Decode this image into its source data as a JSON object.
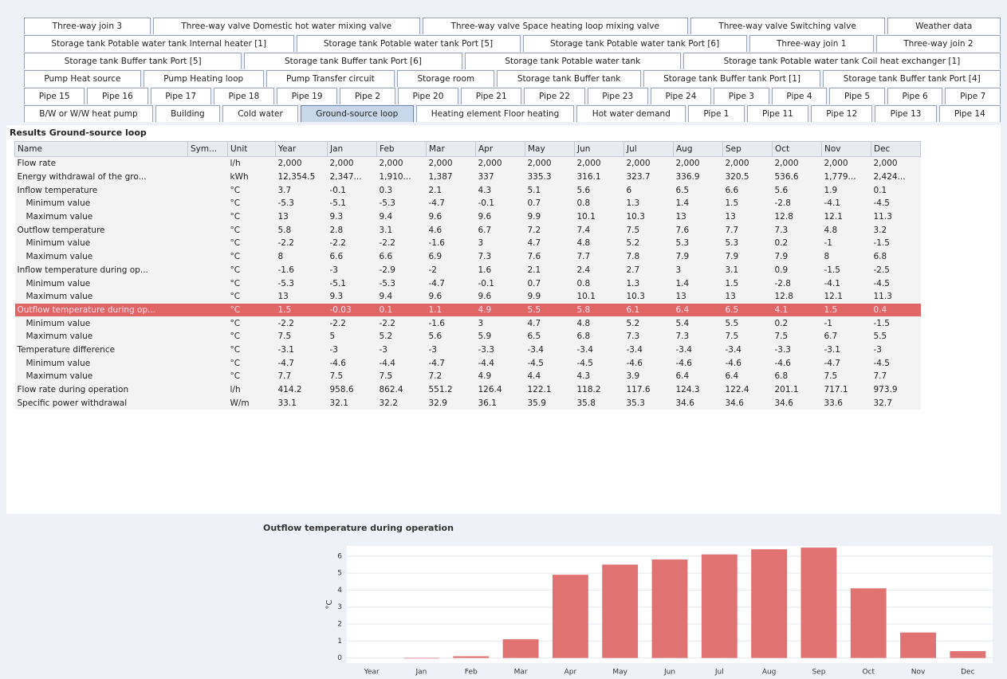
{
  "tabs": [
    [
      "Three-way join 3",
      "Three-way valve Domestic hot water mixing valve",
      "Three-way valve Space heating loop mixing valve",
      "Three-way valve Switching valve",
      "Weather data"
    ],
    [
      "Storage tank Potable water tank Internal heater [1]",
      "Storage tank Potable water tank Port [5]",
      "Storage tank Potable water tank Port [6]",
      "Three-way join 1",
      "Three-way join 2"
    ],
    [
      "Storage tank Buffer tank Port [5]",
      "Storage tank Buffer tank Port [6]",
      "Storage tank Potable water tank",
      "Storage tank Potable water tank Coil heat exchanger [1]"
    ],
    [
      "Pump Heat source",
      "Pump Heating loop",
      "Pump Transfer circuit",
      "Storage room",
      "Storage tank Buffer tank",
      "Storage tank Buffer tank Port [1]",
      "Storage tank Buffer tank Port [4]"
    ],
    [
      "Pipe 15",
      "Pipe 16",
      "Pipe 17",
      "Pipe 18",
      "Pipe 19",
      "Pipe 2",
      "Pipe 20",
      "Pipe 21",
      "Pipe 22",
      "Pipe 23",
      "Pipe 24",
      "Pipe 3",
      "Pipe 4",
      "Pipe 5",
      "Pipe 6",
      "Pipe 7"
    ],
    [
      "B/W or W/W heat pump",
      "Building",
      "Cold water",
      "Ground-source loop",
      "Heating element Floor heating",
      "Hot water demand",
      "Pipe 1",
      "Pipe 11",
      "Pipe 12",
      "Pipe 13",
      "Pipe 14"
    ]
  ],
  "active_tab": {
    "row": 5,
    "index": 3
  },
  "table": {
    "title": "Results Ground-source loop",
    "columns": [
      "Name",
      "Sym...",
      "Unit",
      "Year",
      "Jan",
      "Feb",
      "Mar",
      "Apr",
      "May",
      "Jun",
      "Jul",
      "Aug",
      "Sep",
      "Oct",
      "Nov",
      "Dec"
    ],
    "selected_row": 11,
    "rows": [
      {
        "name": "Flow rate",
        "unit": "l/h",
        "cells": [
          "2,000",
          "2,000",
          "2,000",
          "2,000",
          "2,000",
          "2,000",
          "2,000",
          "2,000",
          "2,000",
          "2,000",
          "2,000",
          "2,000",
          "2,000"
        ]
      },
      {
        "name": "Energy withdrawal of the gro...",
        "unit": "kWh",
        "cells": [
          "12,354.5",
          "2,347...",
          "1,910...",
          "1,387",
          "337",
          "335.3",
          "316.1",
          "323.7",
          "336.9",
          "320.5",
          "536.6",
          "1,779...",
          "2,424..."
        ]
      },
      {
        "name": "Inflow temperature",
        "unit": "°C",
        "cells": [
          "3.7",
          "-0.1",
          "0.3",
          "2.1",
          "4.3",
          "5.1",
          "5.6",
          "6",
          "6.5",
          "6.6",
          "5.6",
          "1.9",
          "0.1"
        ]
      },
      {
        "name": "Minimum value",
        "indent": true,
        "unit": "°C",
        "cells": [
          "-5.3",
          "-5.1",
          "-5.3",
          "-4.7",
          "-0.1",
          "0.7",
          "0.8",
          "1.3",
          "1.4",
          "1.5",
          "-2.8",
          "-4.1",
          "-4.5"
        ]
      },
      {
        "name": "Maximum value",
        "indent": true,
        "unit": "°C",
        "cells": [
          "13",
          "9.3",
          "9.4",
          "9.6",
          "9.6",
          "9.9",
          "10.1",
          "10.3",
          "13",
          "13",
          "12.8",
          "12.1",
          "11.3"
        ]
      },
      {
        "name": "Outflow temperature",
        "unit": "°C",
        "cells": [
          "5.8",
          "2.8",
          "3.1",
          "4.6",
          "6.7",
          "7.2",
          "7.4",
          "7.5",
          "7.6",
          "7.7",
          "7.3",
          "4.8",
          "3.2"
        ]
      },
      {
        "name": "Minimum value",
        "indent": true,
        "unit": "°C",
        "cells": [
          "-2.2",
          "-2.2",
          "-2.2",
          "-1.6",
          "3",
          "4.7",
          "4.8",
          "5.2",
          "5.3",
          "5.3",
          "0.2",
          "-1",
          "-1.5"
        ]
      },
      {
        "name": "Maximum value",
        "indent": true,
        "unit": "°C",
        "cells": [
          "8",
          "6.6",
          "6.6",
          "6.9",
          "7.3",
          "7.6",
          "7.7",
          "7.8",
          "7.9",
          "7.9",
          "7.9",
          "8",
          "6.8"
        ]
      },
      {
        "name": "Inflow temperature during op...",
        "unit": "°C",
        "cells": [
          "-1.6",
          "-3",
          "-2.9",
          "-2",
          "1.6",
          "2.1",
          "2.4",
          "2.7",
          "3",
          "3.1",
          "0.9",
          "-1.5",
          "-2.5"
        ]
      },
      {
        "name": "Minimum value",
        "indent": true,
        "unit": "°C",
        "cells": [
          "-5.3",
          "-5.1",
          "-5.3",
          "-4.7",
          "-0.1",
          "0.7",
          "0.8",
          "1.3",
          "1.4",
          "1.5",
          "-2.8",
          "-4.1",
          "-4.5"
        ]
      },
      {
        "name": "Maximum value",
        "indent": true,
        "unit": "°C",
        "cells": [
          "13",
          "9.3",
          "9.4",
          "9.6",
          "9.6",
          "9.9",
          "10.1",
          "10.3",
          "13",
          "13",
          "12.8",
          "12.1",
          "11.3"
        ]
      },
      {
        "name": "Outflow temperature during op...",
        "unit": "°C",
        "cells": [
          "1.5",
          "-0.03",
          "0.1",
          "1.1",
          "4.9",
          "5.5",
          "5.8",
          "6.1",
          "6.4",
          "6.5",
          "4.1",
          "1.5",
          "0.4"
        ]
      },
      {
        "name": "Minimum value",
        "indent": true,
        "unit": "°C",
        "cells": [
          "-2.2",
          "-2.2",
          "-2.2",
          "-1.6",
          "3",
          "4.7",
          "4.8",
          "5.2",
          "5.4",
          "5.5",
          "0.2",
          "-1",
          "-1.5"
        ]
      },
      {
        "name": "Maximum value",
        "indent": true,
        "unit": "°C",
        "cells": [
          "7.5",
          "5",
          "5.2",
          "5.6",
          "5.9",
          "6.5",
          "6.8",
          "7.3",
          "7.3",
          "7.5",
          "7.5",
          "6.7",
          "5.5"
        ]
      },
      {
        "name": "Temperature difference",
        "unit": "°C",
        "cells": [
          "-3.1",
          "-3",
          "-3",
          "-3",
          "-3.3",
          "-3.4",
          "-3.4",
          "-3.4",
          "-3.4",
          "-3.4",
          "-3.3",
          "-3.1",
          "-3"
        ]
      },
      {
        "name": "Minimum value",
        "indent": true,
        "unit": "°C",
        "cells": [
          "-4.7",
          "-4.6",
          "-4.4",
          "-4.7",
          "-4.4",
          "-4.5",
          "-4.5",
          "-4.6",
          "-4.6",
          "-4.6",
          "-4.6",
          "-4.7",
          "-4.5"
        ]
      },
      {
        "name": "Maximum value",
        "indent": true,
        "unit": "°C",
        "cells": [
          "7.7",
          "7.5",
          "7.5",
          "7.2",
          "4.9",
          "4.4",
          "4.3",
          "3.9",
          "6.4",
          "6.4",
          "6.8",
          "7.5",
          "7.7"
        ]
      },
      {
        "name": "Flow rate during operation",
        "unit": "l/h",
        "cells": [
          "414.2",
          "958.6",
          "862.4",
          "551.2",
          "126.4",
          "122.1",
          "118.2",
          "117.6",
          "124.3",
          "122.4",
          "201.1",
          "717.1",
          "973.9"
        ]
      },
      {
        "name": "Specific power withdrawal",
        "unit": "W/m",
        "cells": [
          "33.1",
          "32.1",
          "32.2",
          "32.9",
          "36.1",
          "35.9",
          "35.8",
          "35.3",
          "34.6",
          "34.6",
          "34.6",
          "33.6",
          "32.7"
        ]
      }
    ]
  },
  "chart_data": {
    "type": "bar",
    "title": "Outflow temperature during operation",
    "y_label": "°C",
    "categories": [
      "Year",
      "Jan",
      "Feb",
      "Mar",
      "Apr",
      "May",
      "Jun",
      "Jul",
      "Aug",
      "Sep",
      "Oct",
      "Nov",
      "Dec"
    ],
    "values": [
      null,
      -0.03,
      0.1,
      1.1,
      4.9,
      5.5,
      5.8,
      6.1,
      6.4,
      6.5,
      4.1,
      1.5,
      0.4
    ],
    "color": "#e07272",
    "ylim": [
      -0.3,
      6.6
    ],
    "yticks": [
      0,
      1,
      2,
      3,
      4,
      5,
      6
    ],
    "grid": true
  }
}
